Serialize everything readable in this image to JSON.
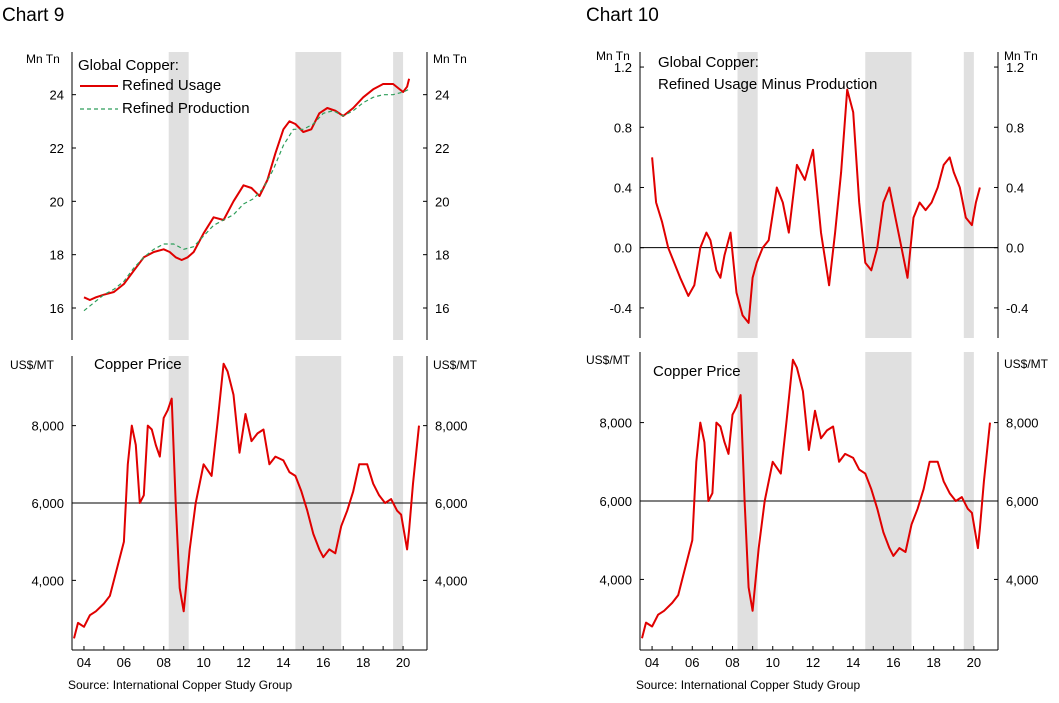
{
  "chart_data": [
    {
      "id": "usage-production",
      "type": "line",
      "chart_title": "Chart 9",
      "title": "Global Copper:",
      "y_unit_left": "Mn Tn",
      "y_unit_right": "Mn Tn",
      "ylim": [
        14.8,
        25.6
      ],
      "yticks": [
        16,
        18,
        20,
        22,
        24
      ],
      "ytick_labels": [
        "16",
        "18",
        "20",
        "22",
        "24"
      ],
      "xlim": [
        2003.4,
        2021.2
      ],
      "recessions": [
        [
          2008.25,
          2009.25
        ],
        [
          2014.6,
          2016.9
        ],
        [
          2019.5,
          2020.0
        ]
      ],
      "series": [
        {
          "name": "Refined Usage",
          "color": "#e00000",
          "style": "solid",
          "x": [
            2004.0,
            2004.3,
            2004.6,
            2005.0,
            2005.5,
            2006.0,
            2006.5,
            2007.0,
            2007.5,
            2008.0,
            2008.3,
            2008.6,
            2008.9,
            2009.2,
            2009.5,
            2010.0,
            2010.5,
            2011.0,
            2011.5,
            2012.0,
            2012.4,
            2012.8,
            2013.2,
            2013.6,
            2014.0,
            2014.3,
            2014.6,
            2015.0,
            2015.4,
            2015.8,
            2016.2,
            2016.6,
            2017.0,
            2017.5,
            2018.0,
            2018.5,
            2019.0,
            2019.5,
            2020.0,
            2020.2,
            2020.3
          ],
          "y": [
            16.4,
            16.3,
            16.4,
            16.5,
            16.6,
            16.9,
            17.4,
            17.9,
            18.1,
            18.2,
            18.1,
            17.9,
            17.8,
            17.9,
            18.1,
            18.8,
            19.4,
            19.3,
            20.0,
            20.6,
            20.5,
            20.2,
            20.8,
            21.8,
            22.7,
            23.0,
            22.9,
            22.6,
            22.7,
            23.3,
            23.5,
            23.4,
            23.2,
            23.5,
            23.9,
            24.2,
            24.4,
            24.4,
            24.1,
            24.3,
            24.6
          ]
        },
        {
          "name": "Refined Production",
          "color": "#2e9e5a",
          "style": "dashed",
          "x": [
            2004.0,
            2004.5,
            2005.0,
            2005.5,
            2006.0,
            2006.5,
            2007.0,
            2007.5,
            2008.0,
            2008.5,
            2009.0,
            2009.5,
            2010.0,
            2010.5,
            2011.0,
            2011.5,
            2012.0,
            2012.5,
            2013.0,
            2013.5,
            2014.0,
            2014.5,
            2015.0,
            2015.5,
            2016.0,
            2016.5,
            2017.0,
            2017.5,
            2018.0,
            2018.5,
            2019.0,
            2019.5,
            2020.0,
            2020.3
          ],
          "y": [
            15.9,
            16.2,
            16.5,
            16.7,
            17.0,
            17.5,
            17.9,
            18.2,
            18.4,
            18.4,
            18.2,
            18.3,
            18.7,
            19.1,
            19.3,
            19.5,
            19.9,
            20.1,
            20.5,
            21.2,
            22.1,
            22.7,
            22.7,
            22.9,
            23.3,
            23.4,
            23.2,
            23.4,
            23.7,
            23.9,
            24.0,
            24.0,
            24.1,
            24.2
          ]
        }
      ]
    },
    {
      "id": "copper-price-9",
      "type": "line",
      "title": "Copper Price",
      "y_unit_left": "US$/MT",
      "y_unit_right": "US$/MT",
      "ylim": [
        2200,
        9800
      ],
      "yticks": [
        4000,
        6000,
        8000
      ],
      "ytick_labels": [
        "4,000",
        "6,000",
        "8,000"
      ],
      "reference_line": 6000,
      "xlim": [
        2003.4,
        2021.2
      ],
      "xticks": [
        2004,
        2006,
        2008,
        2010,
        2012,
        2014,
        2016,
        2018,
        2020
      ],
      "xtick_labels": [
        "04",
        "06",
        "08",
        "10",
        "12",
        "14",
        "16",
        "18",
        "20"
      ],
      "recessions": [
        [
          2008.25,
          2009.25
        ],
        [
          2014.6,
          2016.9
        ],
        [
          2019.5,
          2020.0
        ]
      ],
      "series": [
        {
          "name": "Copper Price",
          "color": "#e00000",
          "x": [
            2003.5,
            2003.7,
            2004.0,
            2004.3,
            2004.6,
            2005.0,
            2005.3,
            2005.6,
            2006.0,
            2006.2,
            2006.4,
            2006.6,
            2006.8,
            2007.0,
            2007.2,
            2007.4,
            2007.6,
            2007.8,
            2008.0,
            2008.2,
            2008.4,
            2008.6,
            2008.8,
            2009.0,
            2009.3,
            2009.6,
            2010.0,
            2010.4,
            2010.7,
            2011.0,
            2011.2,
            2011.5,
            2011.8,
            2012.1,
            2012.4,
            2012.7,
            2013.0,
            2013.3,
            2013.6,
            2014.0,
            2014.3,
            2014.6,
            2014.9,
            2015.2,
            2015.5,
            2015.8,
            2016.0,
            2016.3,
            2016.6,
            2016.9,
            2017.2,
            2017.5,
            2017.8,
            2018.2,
            2018.5,
            2018.8,
            2019.1,
            2019.4,
            2019.7,
            2019.9,
            2020.2,
            2020.3,
            2020.5,
            2020.8
          ],
          "y": [
            2500,
            2900,
            2800,
            3100,
            3200,
            3400,
            3600,
            4200,
            5000,
            7000,
            8000,
            7500,
            6000,
            6200,
            8000,
            7900,
            7500,
            7200,
            8200,
            8400,
            8700,
            6000,
            3800,
            3200,
            4800,
            6000,
            7000,
            6700,
            8100,
            9600,
            9400,
            8800,
            7300,
            8300,
            7600,
            7800,
            7900,
            7000,
            7200,
            7100,
            6800,
            6700,
            6300,
            5800,
            5200,
            4800,
            4600,
            4800,
            4700,
            5400,
            5800,
            6300,
            7000,
            7000,
            6500,
            6200,
            6000,
            6100,
            5800,
            5700,
            4800,
            5300,
            6500,
            8000
          ]
        }
      ],
      "source": "Source: International Copper Study Group"
    },
    {
      "id": "usage-minus-production",
      "type": "line",
      "chart_title": "Chart 10",
      "title_line1": "Global Copper:",
      "title_line2": "Refined Usage Minus Production",
      "y_unit_left": "Mn Tn",
      "y_unit_right": "Mn Tn",
      "ylim": [
        -0.6,
        1.3
      ],
      "yticks": [
        -0.4,
        0.0,
        0.4,
        0.8,
        1.2
      ],
      "ytick_labels": [
        "-0.4",
        "0.0",
        "0.4",
        "0.8",
        "1.2"
      ],
      "reference_line": 0,
      "xlim": [
        2003.4,
        2021.2
      ],
      "recessions": [
        [
          2008.25,
          2009.25
        ],
        [
          2014.6,
          2016.9
        ],
        [
          2019.5,
          2020.0
        ]
      ],
      "series": [
        {
          "name": "Refined Usage Minus Production",
          "color": "#e00000",
          "x": [
            2004.0,
            2004.2,
            2004.5,
            2004.8,
            2005.1,
            2005.4,
            2005.8,
            2006.1,
            2006.4,
            2006.7,
            2006.9,
            2007.2,
            2007.4,
            2007.6,
            2007.9,
            2008.2,
            2008.5,
            2008.8,
            2009.0,
            2009.2,
            2009.5,
            2009.8,
            2010.2,
            2010.5,
            2010.8,
            2011.2,
            2011.6,
            2012.0,
            2012.4,
            2012.8,
            2013.1,
            2013.4,
            2013.7,
            2014.0,
            2014.3,
            2014.6,
            2014.9,
            2015.2,
            2015.5,
            2015.8,
            2016.1,
            2016.4,
            2016.7,
            2017.0,
            2017.3,
            2017.6,
            2017.9,
            2018.2,
            2018.5,
            2018.8,
            2019.0,
            2019.3,
            2019.6,
            2019.9,
            2020.1,
            2020.3
          ],
          "y": [
            0.6,
            0.3,
            0.17,
            0.0,
            -0.1,
            -0.2,
            -0.32,
            -0.25,
            0.0,
            0.1,
            0.05,
            -0.15,
            -0.2,
            -0.05,
            0.1,
            -0.3,
            -0.45,
            -0.5,
            -0.2,
            -0.1,
            0.0,
            0.05,
            0.4,
            0.3,
            0.1,
            0.55,
            0.45,
            0.65,
            0.1,
            -0.25,
            0.1,
            0.5,
            1.05,
            0.9,
            0.3,
            -0.1,
            -0.15,
            0.0,
            0.3,
            0.4,
            0.2,
            0.0,
            -0.2,
            0.2,
            0.3,
            0.25,
            0.3,
            0.4,
            0.55,
            0.6,
            0.5,
            0.4,
            0.2,
            0.15,
            0.3,
            0.4
          ]
        }
      ]
    },
    {
      "id": "copper-price-10",
      "type": "line",
      "title": "Copper Price",
      "y_unit_left": "US$/MT",
      "y_unit_right": "US$/MT",
      "ylim": [
        2200,
        9800
      ],
      "yticks": [
        4000,
        6000,
        8000
      ],
      "ytick_labels": [
        "4,000",
        "6,000",
        "8,000"
      ],
      "reference_line": 6000,
      "xlim": [
        2003.4,
        2021.2
      ],
      "xticks": [
        2004,
        2006,
        2008,
        2010,
        2012,
        2014,
        2016,
        2018,
        2020
      ],
      "xtick_labels": [
        "04",
        "06",
        "08",
        "10",
        "12",
        "14",
        "16",
        "18",
        "20"
      ],
      "recessions": [
        [
          2008.25,
          2009.25
        ],
        [
          2014.6,
          2016.9
        ],
        [
          2019.5,
          2020.0
        ]
      ],
      "series": [
        {
          "name": "Copper Price",
          "color": "#e00000",
          "x": [
            2003.5,
            2003.7,
            2004.0,
            2004.3,
            2004.6,
            2005.0,
            2005.3,
            2005.6,
            2006.0,
            2006.2,
            2006.4,
            2006.6,
            2006.8,
            2007.0,
            2007.2,
            2007.4,
            2007.6,
            2007.8,
            2008.0,
            2008.2,
            2008.4,
            2008.6,
            2008.8,
            2009.0,
            2009.3,
            2009.6,
            2010.0,
            2010.4,
            2010.7,
            2011.0,
            2011.2,
            2011.5,
            2011.8,
            2012.1,
            2012.4,
            2012.7,
            2013.0,
            2013.3,
            2013.6,
            2014.0,
            2014.3,
            2014.6,
            2014.9,
            2015.2,
            2015.5,
            2015.8,
            2016.0,
            2016.3,
            2016.6,
            2016.9,
            2017.2,
            2017.5,
            2017.8,
            2018.2,
            2018.5,
            2018.8,
            2019.1,
            2019.4,
            2019.7,
            2019.9,
            2020.2,
            2020.3,
            2020.5,
            2020.8
          ],
          "y": [
            2500,
            2900,
            2800,
            3100,
            3200,
            3400,
            3600,
            4200,
            5000,
            7000,
            8000,
            7500,
            6000,
            6200,
            8000,
            7900,
            7500,
            7200,
            8200,
            8400,
            8700,
            6000,
            3800,
            3200,
            4800,
            6000,
            7000,
            6700,
            8100,
            9600,
            9400,
            8800,
            7300,
            8300,
            7600,
            7800,
            7900,
            7000,
            7200,
            7100,
            6800,
            6700,
            6300,
            5800,
            5200,
            4800,
            4600,
            4800,
            4700,
            5400,
            5800,
            6300,
            7000,
            7000,
            6500,
            6200,
            6000,
            6100,
            5800,
            5700,
            4800,
            5300,
            6500,
            8000
          ]
        }
      ],
      "source": "Source: International Copper Study Group"
    }
  ]
}
